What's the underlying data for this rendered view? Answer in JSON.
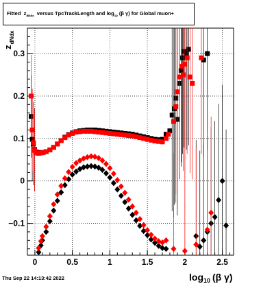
{
  "title": {
    "prefix": "Fitted",
    "z_symbol": "z",
    "z_subscript": "dNdx",
    "mid": "versus TpcTrackLength and log",
    "log_subscript": "10",
    "beta_gamma": "(β  γ)",
    "suffix": "for Global muon+"
  },
  "footer": "Thu Sep 22 14:13:42 2022",
  "y_axis_title": {
    "main": "z",
    "sub": "dNdx"
  },
  "x_axis_title": {
    "main": "log",
    "sub": "10",
    "tail": "(β γ)"
  },
  "colors": {
    "series_upper": "#000000",
    "series_lower": "#ff0000"
  },
  "chart_data": {
    "type": "scatter",
    "title": "Fitted z dNdx versus TpcTrackLength and log10(β γ) for Global muon+",
    "xlabel": "log10(β γ)",
    "ylabel": "z dNdx",
    "xlim": [
      -0.1,
      2.65
    ],
    "ylim": [
      -0.175,
      0.36
    ],
    "xticks": [
      0,
      0.5,
      1,
      1.5,
      2,
      2.5
    ],
    "xtick_labels": [
      "0",
      "0.5",
      "1",
      "1.5",
      "2",
      "2.5"
    ],
    "yticks": [
      -0.1,
      0,
      0.1,
      0.2,
      0.3
    ],
    "ytick_labels": [
      "−0.1",
      "0",
      "0.1",
      "0.2",
      "0.3"
    ],
    "grid": true,
    "series": [
      {
        "color": "#000000",
        "marker": "square",
        "points": [
          [
            -0.05,
            0.152
          ],
          [
            -0.035,
            0.098
          ],
          [
            -0.02,
            0.087
          ],
          [
            -0.005,
            0.074
          ],
          [
            0.02,
            0.068
          ],
          [
            0.05,
            0.067
          ],
          [
            0.08,
            0.066
          ],
          [
            0.11,
            0.067
          ],
          [
            0.15,
            0.069
          ],
          [
            0.2,
            0.073
          ],
          [
            0.25,
            0.079
          ],
          [
            0.3,
            0.087
          ],
          [
            0.35,
            0.095
          ],
          [
            0.4,
            0.103
          ],
          [
            0.45,
            0.109
          ],
          [
            0.5,
            0.113
          ],
          [
            0.55,
            0.116
          ],
          [
            0.6,
            0.118
          ],
          [
            0.65,
            0.119
          ],
          [
            0.7,
            0.12
          ],
          [
            0.75,
            0.12
          ],
          [
            0.8,
            0.12
          ],
          [
            0.85,
            0.119
          ],
          [
            0.9,
            0.118
          ],
          [
            0.95,
            0.117
          ],
          [
            1.0,
            0.116
          ],
          [
            1.05,
            0.115
          ],
          [
            1.1,
            0.114
          ],
          [
            1.15,
            0.113
          ],
          [
            1.2,
            0.112
          ],
          [
            1.25,
            0.111
          ],
          [
            1.3,
            0.11
          ],
          [
            1.35,
            0.108
          ],
          [
            1.4,
            0.106
          ],
          [
            1.45,
            0.104
          ],
          [
            1.5,
            0.102
          ],
          [
            1.55,
            0.1
          ],
          [
            1.6,
            0.098
          ],
          [
            1.65,
            0.097
          ],
          [
            1.7,
            0.098
          ],
          [
            1.75,
            0.11
          ],
          [
            1.8,
            0.118
          ],
          [
            1.83,
            0.155
          ],
          [
            1.86,
            0.17
          ],
          [
            1.88,
            0.195
          ],
          [
            1.9,
            0.145
          ],
          [
            1.93,
            0.23
          ],
          [
            1.95,
            0.26
          ],
          [
            1.97,
            0.29
          ],
          [
            1.99,
            0.305
          ],
          [
            2.02,
            0.3
          ],
          [
            2.05,
            0.31
          ],
          [
            2.25,
            0.285
          ],
          [
            2.3,
            0.3
          ]
        ]
      },
      {
        "color": "#000000",
        "marker": "diamond",
        "points": [
          [
            0.05,
            -0.168
          ],
          [
            0.08,
            -0.152
          ],
          [
            0.1,
            -0.14
          ],
          [
            0.15,
            -0.12
          ],
          [
            0.2,
            -0.095
          ],
          [
            0.25,
            -0.07
          ],
          [
            0.3,
            -0.047
          ],
          [
            0.35,
            -0.027
          ],
          [
            0.4,
            -0.01
          ],
          [
            0.45,
            0.004
          ],
          [
            0.5,
            0.015
          ],
          [
            0.55,
            0.022
          ],
          [
            0.6,
            0.028
          ],
          [
            0.65,
            0.032
          ],
          [
            0.7,
            0.034
          ],
          [
            0.75,
            0.035
          ],
          [
            0.8,
            0.034
          ],
          [
            0.85,
            0.031
          ],
          [
            0.9,
            0.026
          ],
          [
            0.95,
            0.018
          ],
          [
            1.0,
            0.008
          ],
          [
            1.05,
            -0.005
          ],
          [
            1.1,
            -0.02
          ],
          [
            1.15,
            -0.035
          ],
          [
            1.2,
            -0.05
          ],
          [
            1.25,
            -0.065
          ],
          [
            1.3,
            -0.08
          ],
          [
            1.35,
            -0.093
          ],
          [
            1.4,
            -0.106
          ],
          [
            1.45,
            -0.118
          ],
          [
            1.5,
            -0.128
          ],
          [
            1.55,
            -0.138
          ],
          [
            1.6,
            -0.146
          ],
          [
            1.65,
            -0.153
          ],
          [
            1.7,
            -0.158
          ],
          [
            1.75,
            -0.16
          ],
          [
            2.15,
            -0.13
          ],
          [
            2.2,
            -0.155
          ],
          [
            2.25,
            -0.14
          ],
          [
            2.3,
            -0.12
          ],
          [
            2.35,
            -0.1
          ],
          [
            2.4,
            -0.085
          ],
          [
            2.45,
            -0.045
          ],
          [
            2.5,
            0.0
          ],
          [
            2.55,
            -0.105
          ]
        ]
      },
      {
        "color": "#ff0000",
        "marker": "square",
        "points": [
          [
            -0.05,
            0.2
          ],
          [
            -0.035,
            0.12
          ],
          [
            -0.02,
            0.09
          ],
          [
            -0.005,
            0.072
          ],
          [
            0.02,
            0.066
          ],
          [
            0.05,
            0.065
          ],
          [
            0.08,
            0.066
          ],
          [
            0.11,
            0.067
          ],
          [
            0.15,
            0.069
          ],
          [
            0.2,
            0.073
          ],
          [
            0.25,
            0.079
          ],
          [
            0.3,
            0.087
          ],
          [
            0.35,
            0.095
          ],
          [
            0.4,
            0.102
          ],
          [
            0.45,
            0.108
          ],
          [
            0.5,
            0.112
          ],
          [
            0.55,
            0.115
          ],
          [
            0.6,
            0.116
          ],
          [
            0.65,
            0.117
          ],
          [
            0.7,
            0.117
          ],
          [
            0.75,
            0.117
          ],
          [
            0.8,
            0.116
          ],
          [
            0.85,
            0.115
          ],
          [
            0.9,
            0.114
          ],
          [
            0.95,
            0.113
          ],
          [
            1.0,
            0.112
          ],
          [
            1.05,
            0.111
          ],
          [
            1.1,
            0.11
          ],
          [
            1.15,
            0.109
          ],
          [
            1.2,
            0.108
          ],
          [
            1.25,
            0.107
          ],
          [
            1.3,
            0.106
          ],
          [
            1.35,
            0.104
          ],
          [
            1.4,
            0.102
          ],
          [
            1.45,
            0.1
          ],
          [
            1.5,
            0.098
          ],
          [
            1.55,
            0.096
          ],
          [
            1.6,
            0.094
          ],
          [
            1.65,
            0.093
          ],
          [
            1.7,
            0.092
          ],
          [
            1.75,
            0.1
          ],
          [
            1.78,
            0.11
          ],
          [
            1.85,
            0.14
          ],
          [
            1.88,
            0.175
          ],
          [
            1.9,
            0.21
          ],
          [
            1.93,
            0.245
          ],
          [
            1.96,
            0.27
          ],
          [
            1.98,
            0.25
          ],
          [
            2.0,
            0.275
          ],
          [
            2.03,
            0.29
          ],
          [
            2.07,
            0.245
          ],
          [
            2.1,
            0.23
          ],
          [
            2.22,
            0.29
          ]
        ]
      },
      {
        "color": "#ff0000",
        "marker": "diamond",
        "points": [
          [
            0.05,
            -0.158
          ],
          [
            0.08,
            -0.142
          ],
          [
            0.1,
            -0.13
          ],
          [
            0.15,
            -0.108
          ],
          [
            0.2,
            -0.083
          ],
          [
            0.25,
            -0.055
          ],
          [
            0.3,
            -0.032
          ],
          [
            0.35,
            -0.012
          ],
          [
            0.4,
            0.006
          ],
          [
            0.45,
            0.021
          ],
          [
            0.5,
            0.033
          ],
          [
            0.55,
            0.042
          ],
          [
            0.6,
            0.048
          ],
          [
            0.65,
            0.053
          ],
          [
            0.7,
            0.056
          ],
          [
            0.75,
            0.058
          ],
          [
            0.8,
            0.057
          ],
          [
            0.85,
            0.054
          ],
          [
            0.9,
            0.048
          ],
          [
            0.95,
            0.04
          ],
          [
            1.0,
            0.03
          ],
          [
            1.05,
            0.017
          ],
          [
            1.1,
            0.002
          ],
          [
            1.15,
            -0.013
          ],
          [
            1.2,
            -0.028
          ],
          [
            1.25,
            -0.044
          ],
          [
            1.3,
            -0.06
          ],
          [
            1.35,
            -0.075
          ],
          [
            1.4,
            -0.09
          ],
          [
            1.45,
            -0.104
          ],
          [
            1.5,
            -0.116
          ],
          [
            1.55,
            -0.127
          ],
          [
            1.6,
            -0.136
          ],
          [
            1.65,
            -0.142
          ],
          [
            1.7,
            -0.145
          ],
          [
            1.75,
            -0.14
          ],
          [
            1.85,
            -0.16
          ],
          [
            2.0,
            -0.165
          ],
          [
            2.15,
            -0.15
          ],
          [
            2.3,
            -0.115
          ],
          [
            2.35,
            -0.075
          ]
        ]
      }
    ]
  }
}
